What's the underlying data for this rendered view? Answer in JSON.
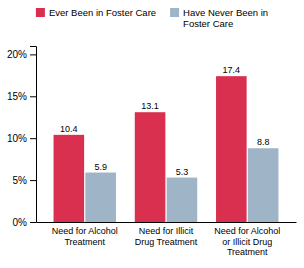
{
  "chart_data": {
    "type": "bar",
    "categories": [
      "Need for Alcohol\nTreatment",
      "Need for Illicit\nDrug Treatment",
      "Need for Alcohol\nor Illicit Drug\nTreatment"
    ],
    "series": [
      {
        "name": "Ever Been in Foster Care",
        "color": "#d93050",
        "values": [
          10.4,
          13.1,
          17.4
        ]
      },
      {
        "name": "Have Never Been in\nFoster Care",
        "color": "#a0b4c8",
        "values": [
          5.9,
          5.3,
          8.8
        ]
      }
    ],
    "ylim": [
      0,
      21
    ],
    "yticks": [
      {
        "value": 0,
        "label": "0%"
      },
      {
        "value": 5,
        "label": "5%"
      },
      {
        "value": 10,
        "label": "10%"
      },
      {
        "value": 15,
        "label": "15%"
      },
      {
        "value": 20,
        "label": "20%"
      }
    ],
    "grid": false,
    "legend": "top",
    "data_labels": true
  }
}
